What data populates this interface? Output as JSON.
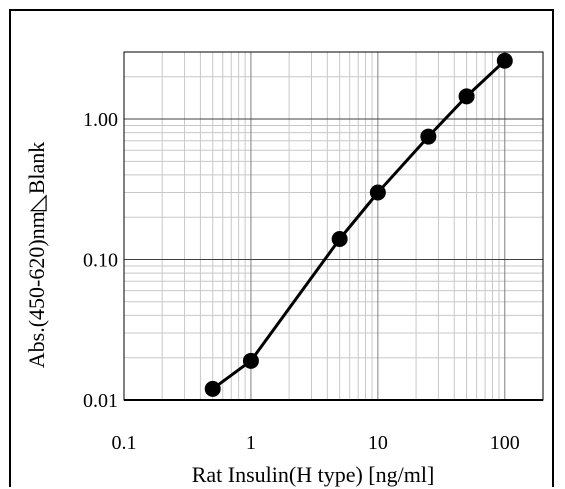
{
  "chart_data": {
    "type": "line",
    "title": "",
    "xlabel": "Rat Insulin(H type) [ng/ml]",
    "ylabel": "Abs.(450-620)nm◺Blank",
    "x_scale": "log",
    "y_scale": "log",
    "xlim": [
      0.1,
      200
    ],
    "ylim": [
      0.01,
      3.0
    ],
    "x_tick_values": [
      0.1,
      1,
      10,
      100
    ],
    "x_tick_labels": [
      "0.1",
      "1",
      "10",
      "100"
    ],
    "y_tick_values": [
      0.01,
      0.1,
      1.0
    ],
    "y_tick_labels": [
      "0.01",
      "0.10",
      "1.00"
    ],
    "grid": true,
    "series": [
      {
        "x": [
          0.5,
          1,
          5,
          10,
          25,
          50,
          100
        ],
        "y": [
          0.012,
          0.019,
          0.14,
          0.3,
          0.75,
          1.45,
          2.6
        ],
        "color": "#000000"
      }
    ]
  }
}
